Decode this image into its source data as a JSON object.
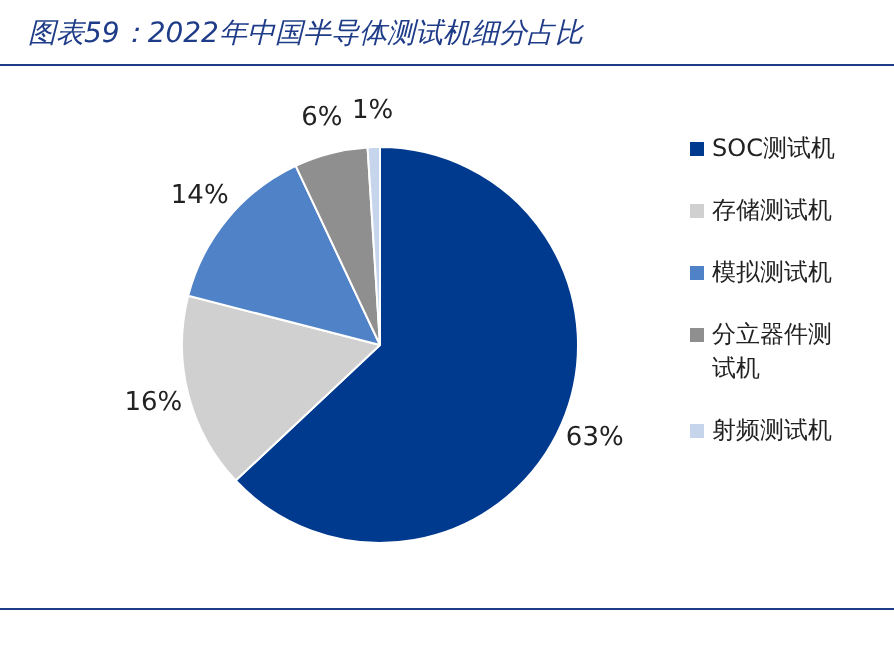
{
  "chart_data": {
    "type": "pie",
    "title": "图表59：2022年中国半导体测试机细分占比",
    "categories": [
      "SOC测试机",
      "存储测试机",
      "模拟测试机",
      "分立器件测试机",
      "射频测试机"
    ],
    "values": [
      63,
      16,
      14,
      6,
      1
    ],
    "colors": [
      "#003a8f",
      "#d0d0d0",
      "#4f82c6",
      "#8f8f8f",
      "#c7d5ec"
    ],
    "value_labels": [
      "63%",
      "16%",
      "14%",
      "6%",
      "1%"
    ],
    "legend": "right"
  }
}
